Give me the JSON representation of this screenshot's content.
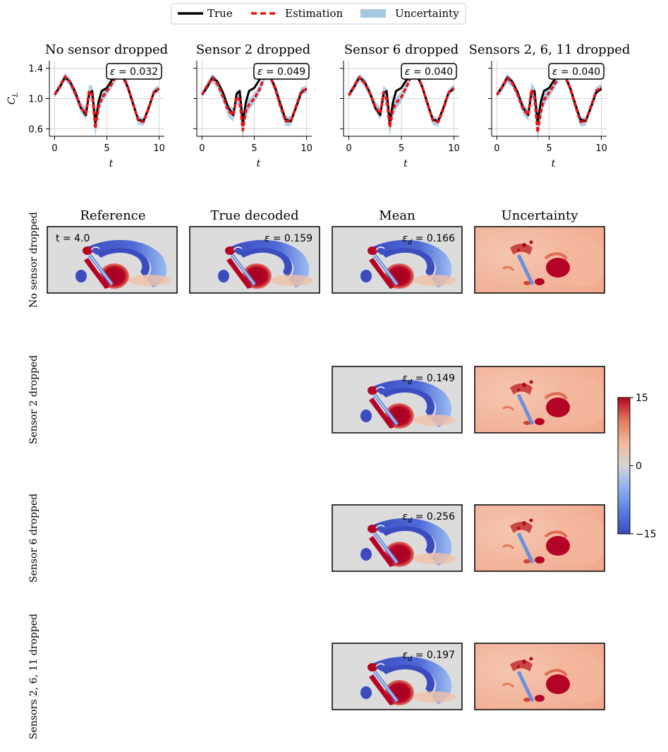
{
  "legend": {
    "entries": [
      {
        "label": "True",
        "color": "#000000",
        "style": "solid"
      },
      {
        "label": "Estimation",
        "color": "#ee1111",
        "style": "dashed"
      },
      {
        "label": "Uncertainty",
        "color": "#a6c8e0",
        "style": "patch"
      }
    ]
  },
  "colorbar": {
    "min_label": "−15",
    "mid_label": "0",
    "max_label": "15",
    "colors": [
      "#3b4cc0",
      "#5b7de0",
      "#8fb0f0",
      "#d4d4d4",
      "#f1b89c",
      "#e07a5a",
      "#b40426"
    ]
  },
  "field_columns": [
    "Reference",
    "True decoded",
    "Mean",
    "Uncertainty"
  ],
  "row_labels": [
    "No sensor dropped",
    "Sensor 2 dropped",
    "Sensor 6 dropped",
    "Sensors 2, 6, 11 dropped"
  ],
  "field_annotations": {
    "time": "t = 4.0",
    "true_decoded": "ε = 0.159",
    "mean": [
      "εd = 0.166",
      "εd = 0.149",
      "εd = 0.256",
      "εd = 0.197"
    ]
  },
  "chart_data": [
    {
      "type": "line",
      "title": "No sensor dropped",
      "xlabel": "t",
      "ylabel": "C_L",
      "xlim": [
        -0.5,
        10.5
      ],
      "ylim": [
        0.5,
        1.5
      ],
      "xticks": [
        0,
        5,
        10
      ],
      "yticks": [
        0.6,
        1.0,
        1.4
      ],
      "grid": true,
      "annotation": "ε = 0.032",
      "x": [
        0,
        0.5,
        1,
        1.5,
        2,
        2.5,
        3,
        3.3,
        3.6,
        3.9,
        4.2,
        4.5,
        5,
        5.5,
        6,
        6.5,
        7,
        7.5,
        8,
        8.5,
        9,
        9.5,
        10
      ],
      "series": [
        {
          "name": "True",
          "values": [
            1.05,
            1.15,
            1.28,
            1.22,
            1.08,
            0.88,
            0.78,
            1.06,
            1.1,
            0.68,
            0.95,
            1.1,
            1.14,
            1.25,
            1.33,
            1.3,
            1.15,
            0.93,
            0.72,
            0.7,
            0.88,
            1.08,
            1.13
          ]
        },
        {
          "name": "Estimation",
          "values": [
            1.05,
            1.16,
            1.29,
            1.21,
            1.06,
            0.88,
            0.8,
            1.1,
            1.05,
            0.6,
            0.88,
            1.0,
            1.1,
            1.2,
            1.32,
            1.31,
            1.16,
            0.94,
            0.71,
            0.69,
            0.87,
            1.09,
            1.13
          ]
        },
        {
          "name": "Uncertainty",
          "values": [
            0.04,
            0.05,
            0.05,
            0.06,
            0.06,
            0.07,
            0.08,
            0.08,
            0.12,
            0.12,
            0.1,
            0.07,
            0.06,
            0.06,
            0.05,
            0.05,
            0.06,
            0.06,
            0.06,
            0.05,
            0.05,
            0.05,
            0.04
          ]
        }
      ]
    },
    {
      "type": "line",
      "title": "Sensor 2 dropped",
      "xlabel": "t",
      "ylabel": "C_L",
      "xlim": [
        -0.5,
        10.5
      ],
      "ylim": [
        0.5,
        1.5
      ],
      "xticks": [
        0,
        5,
        10
      ],
      "yticks": [
        0.6,
        1.0,
        1.4
      ],
      "grid": true,
      "annotation": "ε = 0.049",
      "x": [
        0,
        0.5,
        1,
        1.5,
        2,
        2.5,
        3,
        3.3,
        3.6,
        3.9,
        4.2,
        4.5,
        5,
        5.5,
        6,
        6.5,
        7,
        7.5,
        8,
        8.5,
        9,
        9.5,
        10
      ],
      "series": [
        {
          "name": "True",
          "values": [
            1.05,
            1.15,
            1.28,
            1.22,
            1.08,
            0.88,
            0.78,
            1.06,
            1.1,
            0.68,
            0.95,
            1.1,
            1.14,
            1.25,
            1.33,
            1.3,
            1.15,
            0.93,
            0.72,
            0.7,
            0.88,
            1.08,
            1.13
          ]
        },
        {
          "name": "Estimation",
          "values": [
            1.05,
            1.17,
            1.27,
            1.19,
            1.03,
            0.84,
            0.78,
            1.02,
            0.98,
            0.58,
            0.84,
            0.92,
            1.0,
            1.12,
            1.3,
            1.3,
            1.13,
            0.9,
            0.7,
            0.7,
            0.9,
            1.1,
            1.12
          ]
        },
        {
          "name": "Uncertainty",
          "values": [
            0.04,
            0.05,
            0.06,
            0.06,
            0.07,
            0.08,
            0.09,
            0.09,
            0.12,
            0.13,
            0.11,
            0.08,
            0.07,
            0.06,
            0.06,
            0.06,
            0.06,
            0.07,
            0.07,
            0.06,
            0.05,
            0.05,
            0.05
          ]
        }
      ]
    },
    {
      "type": "line",
      "title": "Sensor 6 dropped",
      "xlabel": "t",
      "ylabel": "C_L",
      "xlim": [
        -0.5,
        10.5
      ],
      "ylim": [
        0.5,
        1.5
      ],
      "xticks": [
        0,
        5,
        10
      ],
      "yticks": [
        0.6,
        1.0,
        1.4
      ],
      "grid": true,
      "annotation": "ε = 0.040",
      "x": [
        0,
        0.5,
        1,
        1.5,
        2,
        2.5,
        3,
        3.3,
        3.6,
        3.9,
        4.2,
        4.5,
        5,
        5.5,
        6,
        6.5,
        7,
        7.5,
        8,
        8.5,
        9,
        9.5,
        10
      ],
      "series": [
        {
          "name": "True",
          "values": [
            1.05,
            1.15,
            1.28,
            1.22,
            1.08,
            0.88,
            0.78,
            1.06,
            1.1,
            0.68,
            0.95,
            1.1,
            1.14,
            1.25,
            1.33,
            1.3,
            1.15,
            0.93,
            0.72,
            0.7,
            0.88,
            1.08,
            1.13
          ]
        },
        {
          "name": "Estimation",
          "values": [
            1.04,
            1.16,
            1.28,
            1.21,
            1.07,
            0.9,
            0.8,
            1.08,
            1.0,
            0.62,
            0.86,
            0.94,
            1.02,
            1.16,
            1.32,
            1.31,
            1.15,
            0.92,
            0.71,
            0.69,
            0.86,
            1.08,
            1.14
          ]
        },
        {
          "name": "Uncertainty",
          "values": [
            0.04,
            0.05,
            0.05,
            0.06,
            0.06,
            0.07,
            0.08,
            0.09,
            0.12,
            0.12,
            0.1,
            0.08,
            0.07,
            0.06,
            0.05,
            0.05,
            0.06,
            0.06,
            0.06,
            0.06,
            0.05,
            0.05,
            0.04
          ]
        }
      ]
    },
    {
      "type": "line",
      "title": "Sensors 2, 6, 11 dropped",
      "xlabel": "t",
      "ylabel": "C_L",
      "xlim": [
        -0.5,
        10.5
      ],
      "ylim": [
        0.5,
        1.5
      ],
      "xticks": [
        0,
        5,
        10
      ],
      "yticks": [
        0.6,
        1.0,
        1.4
      ],
      "grid": true,
      "annotation": "ε = 0.040",
      "x": [
        0,
        0.5,
        1,
        1.5,
        2,
        2.5,
        3,
        3.3,
        3.6,
        3.9,
        4.2,
        4.5,
        5,
        5.5,
        6,
        6.5,
        7,
        7.5,
        8,
        8.5,
        9,
        9.5,
        10
      ],
      "series": [
        {
          "name": "True",
          "values": [
            1.05,
            1.15,
            1.28,
            1.22,
            1.08,
            0.88,
            0.78,
            1.06,
            1.1,
            0.68,
            0.95,
            1.1,
            1.14,
            1.25,
            1.33,
            1.3,
            1.15,
            0.93,
            0.72,
            0.7,
            0.88,
            1.08,
            1.13
          ]
        },
        {
          "name": "Estimation",
          "values": [
            1.05,
            1.15,
            1.27,
            1.2,
            1.05,
            0.86,
            0.78,
            1.12,
            1.02,
            0.55,
            0.82,
            0.98,
            1.08,
            1.18,
            1.31,
            1.3,
            1.14,
            0.91,
            0.69,
            0.7,
            0.9,
            1.1,
            1.15
          ]
        },
        {
          "name": "Uncertainty",
          "values": [
            0.04,
            0.05,
            0.06,
            0.06,
            0.06,
            0.07,
            0.08,
            0.09,
            0.13,
            0.13,
            0.1,
            0.08,
            0.07,
            0.06,
            0.06,
            0.05,
            0.06,
            0.07,
            0.06,
            0.06,
            0.05,
            0.05,
            0.05
          ]
        }
      ]
    }
  ]
}
